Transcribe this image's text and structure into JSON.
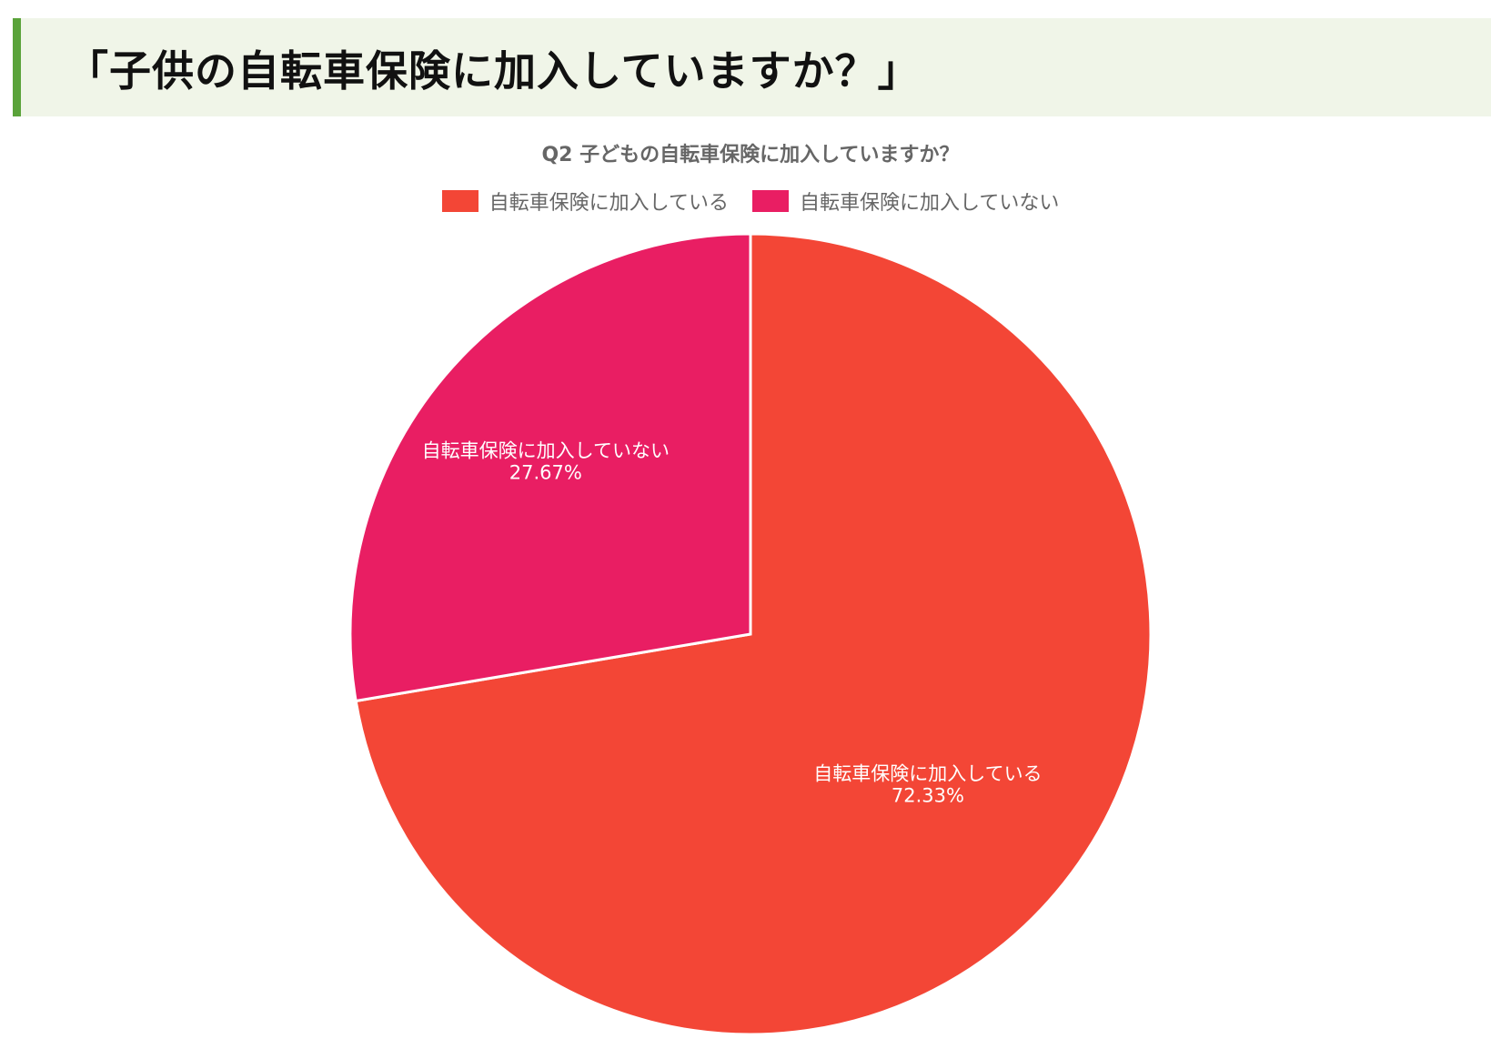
{
  "heading": {
    "text": "「子供の自転車保険に加入していますか？」"
  },
  "chart_data": {
    "type": "pie",
    "title": "Q2 子どもの自転車保険に加入していますか？",
    "legend_position": "top",
    "slices": [
      {
        "label": "自転車保険に加入している",
        "value": 72.33,
        "value_label": "72.33%",
        "color": "#f34636"
      },
      {
        "label": "自転車保険に加入していない",
        "value": 27.67,
        "value_label": "27.67%",
        "color": "#e91e63"
      }
    ],
    "start": "12 o'clock, clockwise"
  },
  "colors": {
    "heading_bg": "#f0f5e8",
    "heading_accent": "#5aa33a"
  }
}
